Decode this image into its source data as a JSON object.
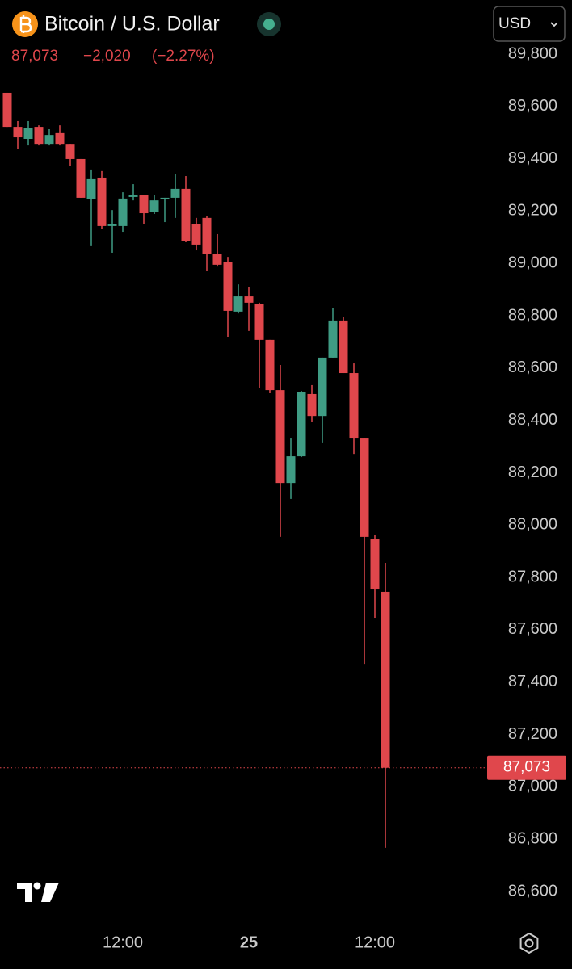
{
  "chart_data": {
    "type": "candlestick",
    "title": "Bitcoin / U.S. Dollar",
    "currency": "USD",
    "change": "−2,020",
    "change_pct": "(−2.27%)",
    "last_price": {
      "value": 87073,
      "label": "87,073"
    },
    "up_color": "#3f9c84",
    "down_color": "#e0474c",
    "categories": [
      null,
      null,
      null,
      null,
      null,
      null,
      null,
      null,
      null,
      null,
      null,
      "12:00",
      null,
      null,
      null,
      null,
      null,
      null,
      null,
      null,
      null,
      null,
      null,
      "25",
      null,
      null,
      null,
      null,
      null,
      null,
      null,
      null,
      null,
      null,
      null,
      "12:00",
      null
    ],
    "open": [
      89652,
      89522,
      89476,
      89522,
      89457,
      89498,
      89457,
      89399,
      89245,
      89328,
      89143,
      89143,
      89254,
      89260,
      89198,
      89248,
      89251,
      89285,
      89152,
      89174,
      89035,
      89004,
      88816,
      88874,
      88846,
      88708,
      88516,
      88161,
      88263,
      88501,
      88417,
      88640,
      88782,
      88581,
      88331,
      87948,
      87745
    ],
    "high": [
      89652,
      89544,
      89544,
      89528,
      89513,
      89528,
      89457,
      89399,
      89359,
      89353,
      89204,
      89272,
      89303,
      89260,
      89260,
      89251,
      89343,
      89334,
      89174,
      89180,
      89112,
      89025,
      88920,
      88911,
      88850,
      88708,
      88612,
      88331,
      88513,
      88535,
      88640,
      88828,
      88797,
      88618,
      88331,
      87964,
      87856
    ],
    "low": [
      89522,
      89436,
      89451,
      89451,
      89451,
      89451,
      89374,
      89251,
      89066,
      89133,
      89041,
      89121,
      89241,
      89149,
      89189,
      89158,
      89174,
      89081,
      89050,
      88973,
      88988,
      88720,
      88809,
      88742,
      88525,
      88504,
      87955,
      88100,
      88260,
      88396,
      88316,
      88640,
      88581,
      88272,
      87470,
      87646,
      86767
    ],
    "close": [
      89522,
      89482,
      89519,
      89457,
      89491,
      89457,
      89399,
      89251,
      89322,
      89143,
      89152,
      89248,
      89260,
      89192,
      89241,
      89251,
      89285,
      89087,
      89072,
      89035,
      88995,
      88819,
      88874,
      88850,
      88708,
      88516,
      88161,
      88263,
      88510,
      88417,
      88640,
      88782,
      88581,
      88331,
      87955,
      87754,
      87073
    ],
    "ylim": [
      86500,
      89900
    ],
    "yticks": [
      {
        "value": 86600,
        "label": "86,600"
      },
      {
        "value": 86800,
        "label": "86,800"
      },
      {
        "value": 87000,
        "label": "87,000"
      },
      {
        "value": 87200,
        "label": "87,200"
      },
      {
        "value": 87400,
        "label": "87,400"
      },
      {
        "value": 87600,
        "label": "87,600"
      },
      {
        "value": 87800,
        "label": "87,800"
      },
      {
        "value": 88000,
        "label": "88,000"
      },
      {
        "value": 88200,
        "label": "88,200"
      },
      {
        "value": 88400,
        "label": "88,400"
      },
      {
        "value": 88600,
        "label": "88,600"
      },
      {
        "value": 88800,
        "label": "88,800"
      },
      {
        "value": 89000,
        "label": "89,000"
      },
      {
        "value": 89200,
        "label": "89,200"
      },
      {
        "value": 89400,
        "label": "89,400"
      },
      {
        "value": 89600,
        "label": "89,600"
      },
      {
        "value": 89800,
        "label": "89,800"
      }
    ]
  }
}
